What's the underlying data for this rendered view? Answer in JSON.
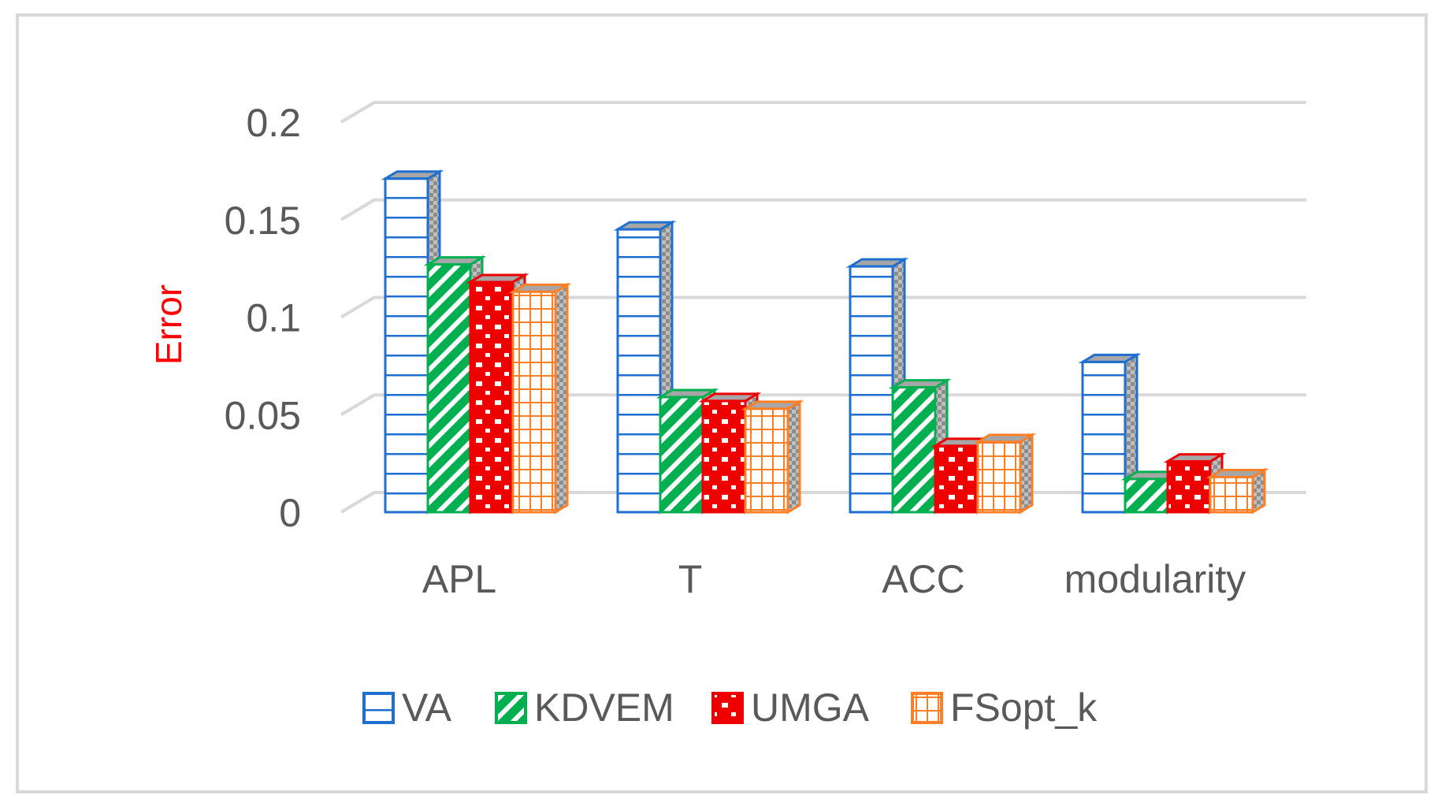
{
  "chart_data": {
    "type": "bar",
    "style": "3d-clustered-column",
    "title": "",
    "xlabel": "",
    "ylabel": "Error",
    "ylabel_color": "#ff0000",
    "ylim": [
      0,
      0.2
    ],
    "yticks": [
      0,
      0.05,
      0.1,
      0.15,
      0.2
    ],
    "ytick_labels": [
      "0",
      "0.05",
      "0.1",
      "0.15",
      "0.2"
    ],
    "grid": true,
    "legend_position": "bottom",
    "categories": [
      "APL",
      "T",
      "ACC",
      "modularity"
    ],
    "series": [
      {
        "name": "VA",
        "color": "#1f6fd1",
        "pattern": "horizontal-bricks",
        "values": [
          0.171,
          0.145,
          0.126,
          0.077
        ]
      },
      {
        "name": "KDVEM",
        "color": "#00b050",
        "pattern": "diagonal-stripes",
        "values": [
          0.127,
          0.059,
          0.064,
          0.017
        ]
      },
      {
        "name": "UMGA",
        "color": "#ee0000",
        "pattern": "dotted-bricks",
        "values": [
          0.118,
          0.057,
          0.034,
          0.026
        ]
      },
      {
        "name": "FSopt_k",
        "color": "#ff7f27",
        "pattern": "grid",
        "values": [
          0.113,
          0.053,
          0.036,
          0.018
        ]
      }
    ]
  }
}
